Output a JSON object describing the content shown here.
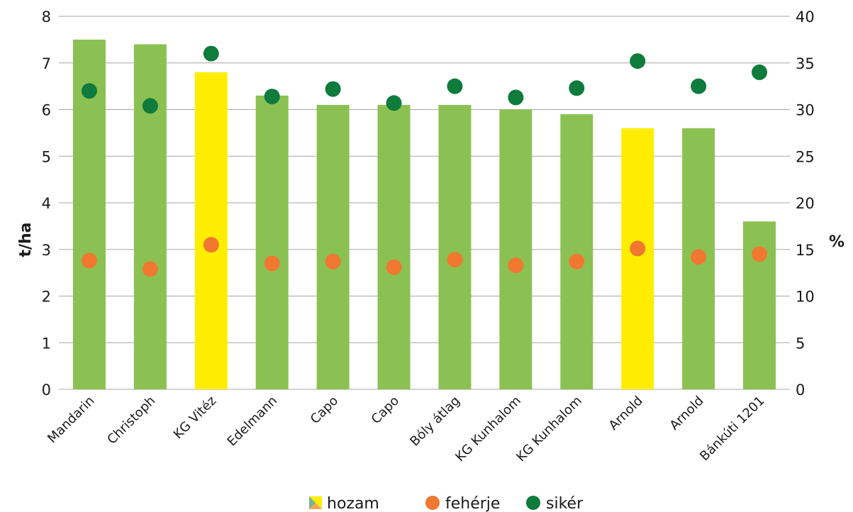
{
  "chart_data": {
    "type": "bar",
    "categories": [
      "Mandarin",
      "Christoph",
      "KG Vitéz",
      "Edelmann",
      "Capo",
      "Capo",
      "Bóly átlag",
      "KG Kunhalom",
      "KG Kunhalom",
      "Arnold",
      "Arnold",
      "Bánkúti 1201"
    ],
    "series": [
      {
        "name": "hozam",
        "kind": "bar",
        "axis": "left",
        "values": [
          7.5,
          7.4,
          6.8,
          6.3,
          6.1,
          6.1,
          6.1,
          6.0,
          5.9,
          5.6,
          5.6,
          3.6
        ],
        "colors": [
          "#8bc152",
          "#8bc152",
          "#ffed00",
          "#8bc152",
          "#8bc152",
          "#8bc152",
          "#8bc152",
          "#8bc152",
          "#8bc152",
          "#ffed00",
          "#8bc152",
          "#8bc152"
        ]
      },
      {
        "name": "fehérje",
        "kind": "scatter",
        "axis": "right",
        "color": "#f07830",
        "values": [
          13.8,
          12.9,
          15.5,
          13.5,
          13.7,
          13.1,
          13.9,
          13.3,
          13.7,
          15.1,
          14.2,
          14.5
        ]
      },
      {
        "name": "sikér",
        "kind": "scatter",
        "axis": "right",
        "color": "#0f7b3c",
        "values": [
          32.0,
          30.4,
          36.0,
          31.4,
          32.2,
          30.7,
          32.5,
          31.3,
          32.3,
          35.2,
          32.5,
          34.0
        ]
      }
    ],
    "ylabel": "t/ha",
    "y2label": "%",
    "ylim": [
      0,
      8
    ],
    "y2lim": [
      0,
      40
    ],
    "yticks": [
      "0",
      "1",
      "2",
      "3",
      "4",
      "5",
      "6",
      "7",
      "8"
    ],
    "y2ticks": [
      "0",
      "5",
      "10",
      "15",
      "20",
      "25",
      "30",
      "35",
      "40"
    ],
    "grid": true,
    "legend_position": "bottom"
  },
  "legend": {
    "hozam": "hozam",
    "feherje": "fehérje",
    "siker": "sikér"
  }
}
